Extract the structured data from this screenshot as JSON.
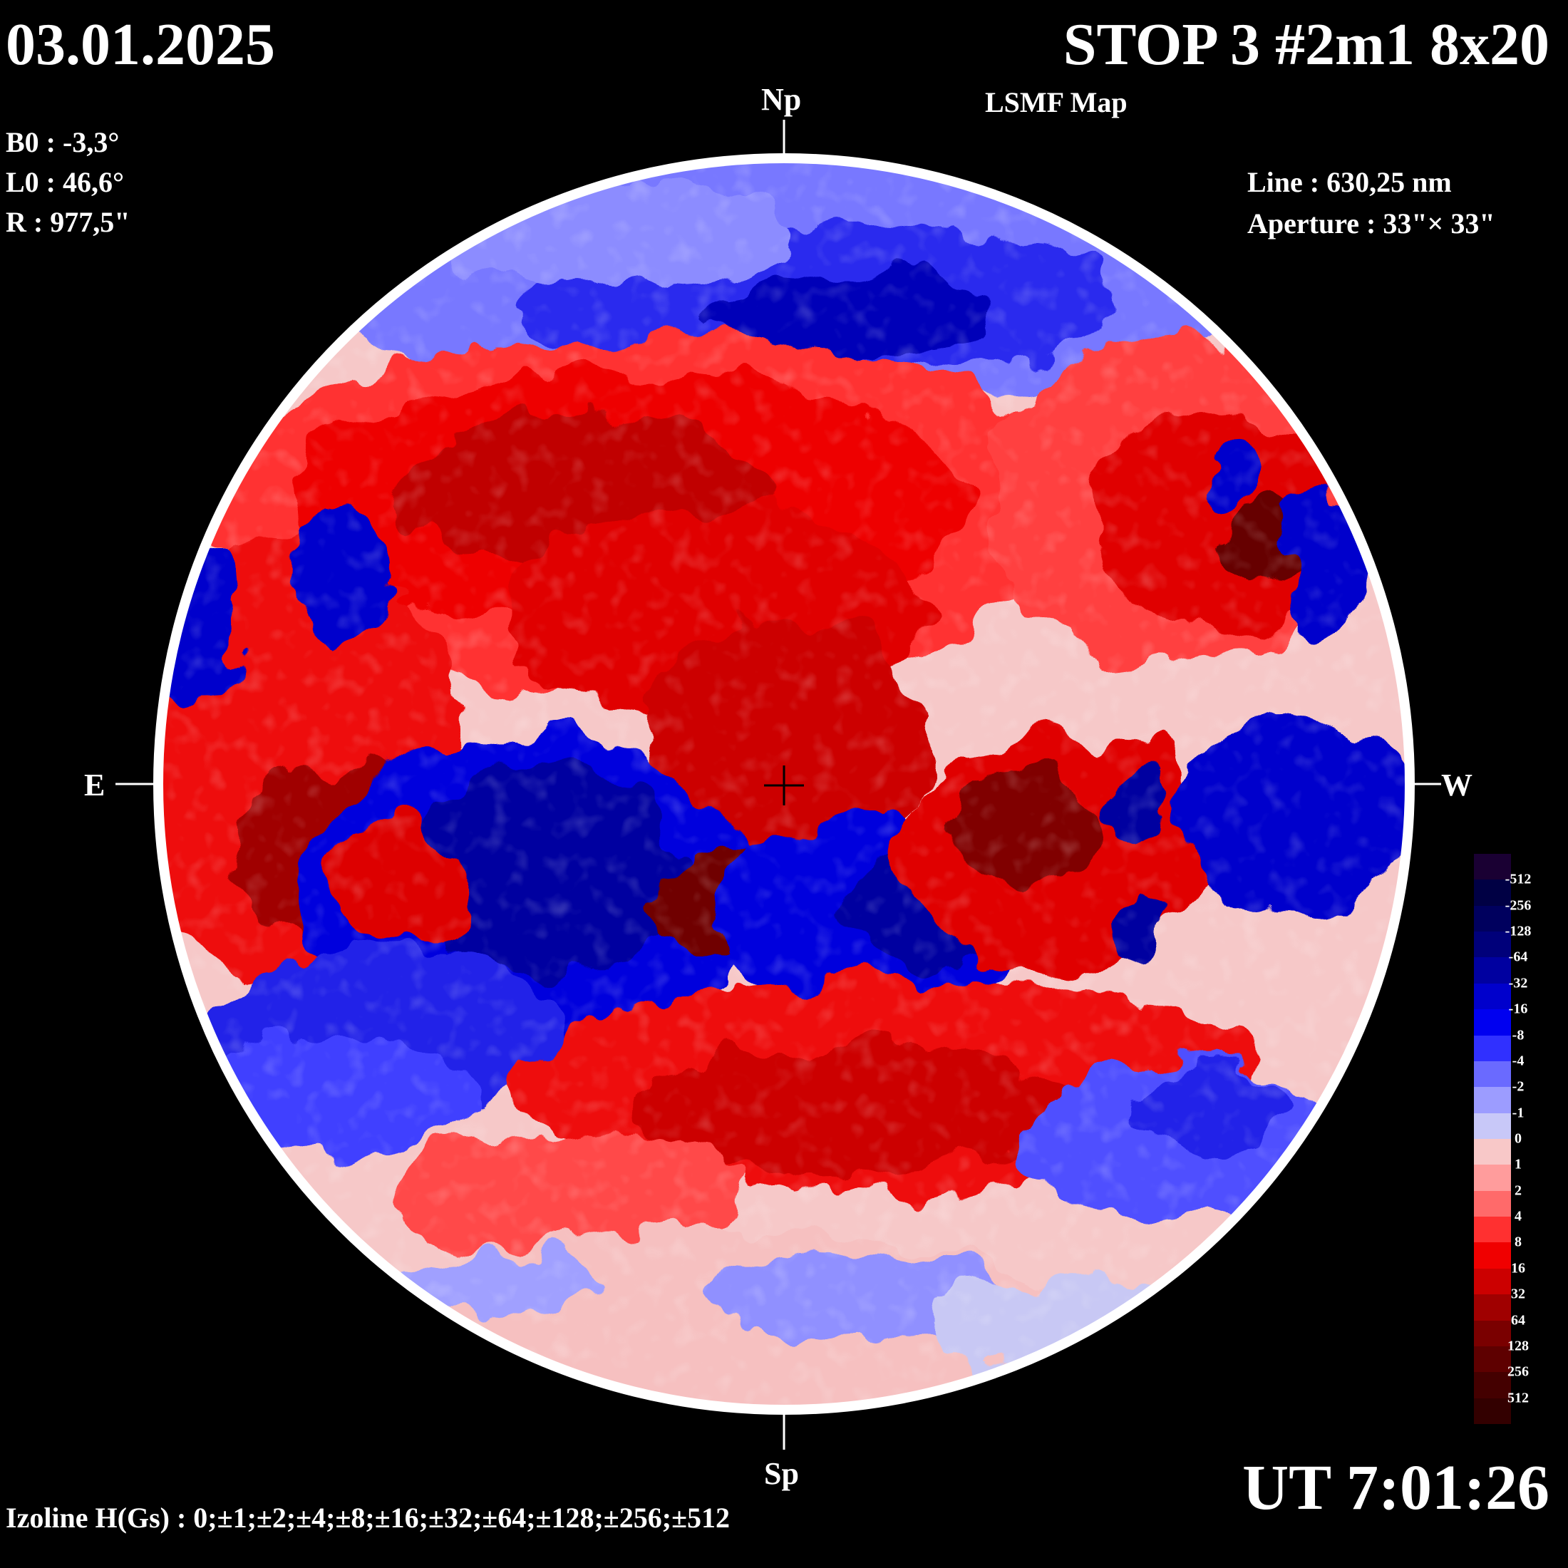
{
  "header": {
    "date": "03.01.2025",
    "title": "STOP 3 #2m1 8x20",
    "subtitle": "LSMF  Map"
  },
  "params": {
    "b0": "B0 : -3,3°",
    "l0": "L0 : 46,6°",
    "r": "R  : 977,5\"",
    "line": "Line :  630,25 nm",
    "aperture": "Aperture : 33\"× 33\""
  },
  "orientation": {
    "north": "Np",
    "south": "Sp",
    "east": "E",
    "west": "W"
  },
  "time": "UT 7:01:26",
  "izoline": "Izoline H(Gs) : 0;±1;±2;±4;±8;±16;±32;±64;±128;±256;±512",
  "colorbar": {
    "labels": [
      "-512",
      "-256",
      "-128",
      "-64",
      "-32",
      "-16",
      "-8",
      "-4",
      "-2",
      "-1",
      "0",
      "1",
      "2",
      "4",
      "8",
      "16",
      "32",
      "64",
      "128",
      "256",
      "512"
    ],
    "colors": [
      "#1a0033",
      "#000044",
      "#00005e",
      "#00007a",
      "#0000a0",
      "#0000cc",
      "#0000f0",
      "#3030ff",
      "#6a6aff",
      "#9c9cff",
      "#c8c8f8",
      "#f8c8c8",
      "#ff9c9c",
      "#ff6a6a",
      "#ff3030",
      "#f00000",
      "#cc0000",
      "#a00000",
      "#7a0000",
      "#5e0000",
      "#440000",
      "#330000"
    ]
  },
  "map_colors": {
    "blue_deep": "#000066",
    "blue_mid": "#0000dd",
    "blue_light": "#7070ff",
    "blue_pale": "#c8c8f4",
    "red_pale": "#f8c4c4",
    "red_light": "#ff6a6a",
    "red_mid": "#ee0000",
    "red_deep": "#7a0000"
  }
}
